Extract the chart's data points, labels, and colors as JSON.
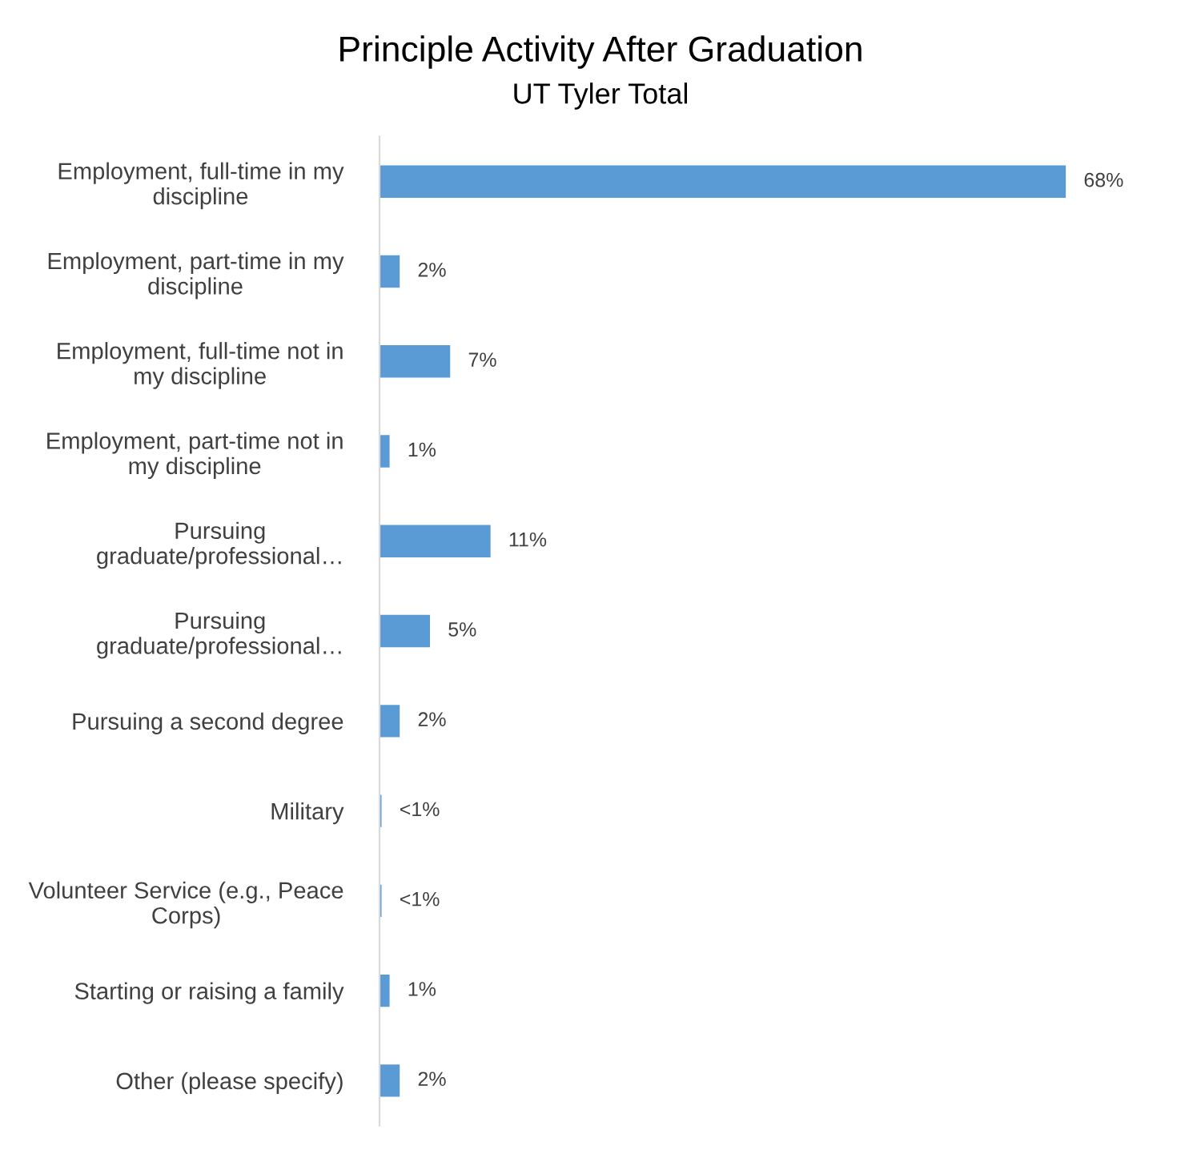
{
  "chart_data": {
    "type": "bar",
    "orientation": "horizontal",
    "title": "Principle Activity After Graduation",
    "subtitle": "UT Tyler Total",
    "categories": [
      "Employment, full-time in my\ndiscipline",
      "Employment, part-time in my\ndiscipline",
      "Employment, full-time not in\nmy discipline",
      "Employment, part-time not in\nmy discipline",
      "Pursuing\ngraduate/professional…",
      "Pursuing\ngraduate/professional…",
      "Pursuing a second degree",
      "Military",
      "Volunteer Service (e.g., Peace\nCorps)",
      "Starting or raising a family",
      "Other (please specify)"
    ],
    "values": [
      68,
      2,
      7,
      1,
      11,
      5,
      2,
      0.2,
      0.2,
      1,
      2
    ],
    "value_labels": [
      "68%",
      "2%",
      "7%",
      "1%",
      "11%",
      "5%",
      "2%",
      "<1%",
      "<1%",
      "1%",
      "2%"
    ],
    "color": "#5b9bd5",
    "grid": false,
    "legend": false
  }
}
